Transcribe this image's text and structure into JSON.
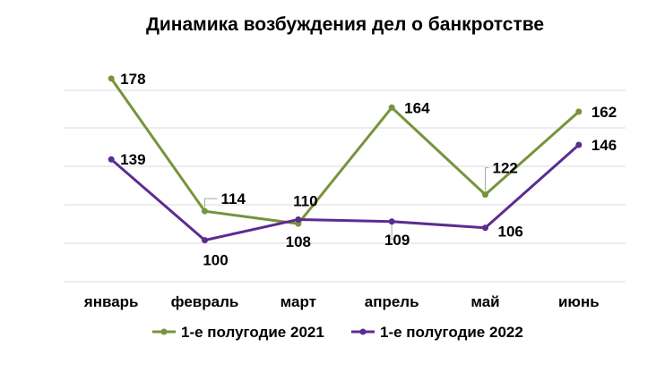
{
  "chart_data": {
    "type": "line",
    "title": "Динамика возбуждения дел о банкротстве",
    "categories": [
      "январь",
      "февраль",
      "март",
      "апрель",
      "май",
      "июнь"
    ],
    "series": [
      {
        "name": "1-е полугодие 2021",
        "values": [
          178,
          114,
          108,
          164,
          122,
          162
        ],
        "color": "#77933c"
      },
      {
        "name": "1-е полугодие 2022",
        "values": [
          139,
          100,
          110,
          109,
          106,
          146
        ],
        "color": "#5b2c91"
      }
    ],
    "ylim": [
      80,
      190
    ],
    "grid": true,
    "legend": "bottom",
    "xlabel": "",
    "ylabel": ""
  }
}
